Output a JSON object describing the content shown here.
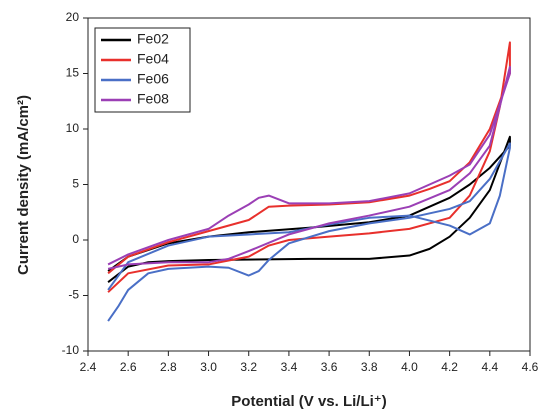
{
  "chart_data": {
    "type": "line",
    "x_label": "Potential (V vs. Li/Li⁺)",
    "y_label": "Current density (mA/cm²)",
    "xlim": [
      2.4,
      4.6
    ],
    "ylim": [
      -10,
      20
    ],
    "xticks": [
      2.4,
      2.6,
      2.8,
      {
        "value": 3,
        "label": "3.0"
      },
      3.2,
      3.4,
      3.6,
      3.8,
      {
        "value": 4,
        "label": "4.0"
      },
      4.2,
      4.4,
      4.6
    ],
    "yticks": [
      -10,
      -5,
      0,
      5,
      10,
      15,
      20
    ],
    "legend": "upper left",
    "series": [
      {
        "name": "Fe02",
        "color": "#000000",
        "x": [
          2.5,
          2.6,
          2.7,
          2.8,
          3.0,
          3.5,
          3.8,
          4.0,
          4.1,
          4.2,
          4.3,
          4.4,
          4.5,
          4.5,
          4.4,
          4.3,
          4.2,
          4.1,
          4.0,
          3.8,
          3.5,
          3.2,
          3.0,
          2.8,
          2.6,
          2.5
        ],
        "values": [
          -3.8,
          -2.4,
          -2.0,
          -1.9,
          -1.8,
          -1.7,
          -1.7,
          -1.4,
          -0.8,
          0.3,
          2.0,
          4.5,
          9.3,
          8.5,
          6.5,
          5.0,
          3.8,
          3.0,
          2.2,
          1.6,
          1.1,
          0.7,
          0.3,
          -0.3,
          -1.5,
          -2.8
        ]
      },
      {
        "name": "Fe04",
        "color": "#e8302c",
        "x": [
          2.5,
          2.6,
          2.8,
          3.0,
          3.2,
          3.3,
          3.4,
          3.6,
          3.8,
          4.0,
          4.2,
          4.3,
          4.4,
          4.45,
          4.5,
          4.5,
          4.4,
          4.3,
          4.2,
          4.1,
          4.0,
          3.8,
          3.6,
          3.4,
          3.3,
          3.2,
          3.0,
          2.8,
          2.6,
          2.5
        ],
        "values": [
          -4.7,
          -3.0,
          -2.3,
          -2.2,
          -1.5,
          -0.5,
          0.0,
          0.3,
          0.6,
          1.0,
          2.0,
          4.0,
          8.0,
          12.0,
          17.8,
          15.0,
          10.0,
          7.0,
          5.3,
          4.6,
          4.0,
          3.4,
          3.2,
          3.1,
          3.0,
          1.8,
          0.8,
          -0.2,
          -1.5,
          -3.0
        ]
      },
      {
        "name": "Fe06",
        "color": "#4a6fc6",
        "x": [
          2.5,
          2.55,
          2.6,
          2.7,
          2.8,
          3.0,
          3.1,
          3.2,
          3.25,
          3.3,
          3.4,
          3.6,
          3.8,
          4.0,
          4.2,
          4.3,
          4.4,
          4.5,
          4.5,
          4.45,
          4.4,
          4.3,
          4.2,
          4.0,
          3.8,
          3.6,
          3.4,
          3.2,
          3.0,
          2.8,
          2.6,
          2.5
        ],
        "values": [
          -7.3,
          -6.0,
          -4.5,
          -3.0,
          -2.6,
          -2.4,
          -2.5,
          -3.2,
          -2.8,
          -1.8,
          -0.3,
          0.8,
          1.5,
          2.0,
          2.8,
          3.5,
          5.5,
          8.7,
          8.3,
          4.0,
          1.5,
          0.5,
          1.3,
          2.2,
          2.0,
          1.4,
          0.7,
          0.5,
          0.3,
          -0.5,
          -2.0,
          -4.5
        ]
      },
      {
        "name": "Fe08",
        "color": "#9b3fb5",
        "x": [
          2.5,
          2.6,
          2.8,
          3.0,
          3.1,
          3.2,
          3.4,
          3.6,
          3.8,
          4.0,
          4.2,
          4.3,
          4.4,
          4.5,
          4.5,
          4.4,
          4.3,
          4.2,
          4.1,
          4.0,
          3.8,
          3.6,
          3.4,
          3.3,
          3.25,
          3.2,
          3.1,
          3.0,
          2.8,
          2.6,
          2.5
        ],
        "values": [
          -2.6,
          -2.2,
          -2.0,
          -2.0,
          -1.7,
          -1.0,
          0.5,
          1.5,
          2.2,
          3.0,
          4.5,
          6.0,
          8.5,
          15.6,
          15.0,
          9.5,
          6.8,
          5.8,
          5.0,
          4.2,
          3.5,
          3.3,
          3.3,
          4.0,
          3.8,
          3.2,
          2.2,
          1.0,
          0.0,
          -1.3,
          -2.2
        ]
      }
    ]
  }
}
